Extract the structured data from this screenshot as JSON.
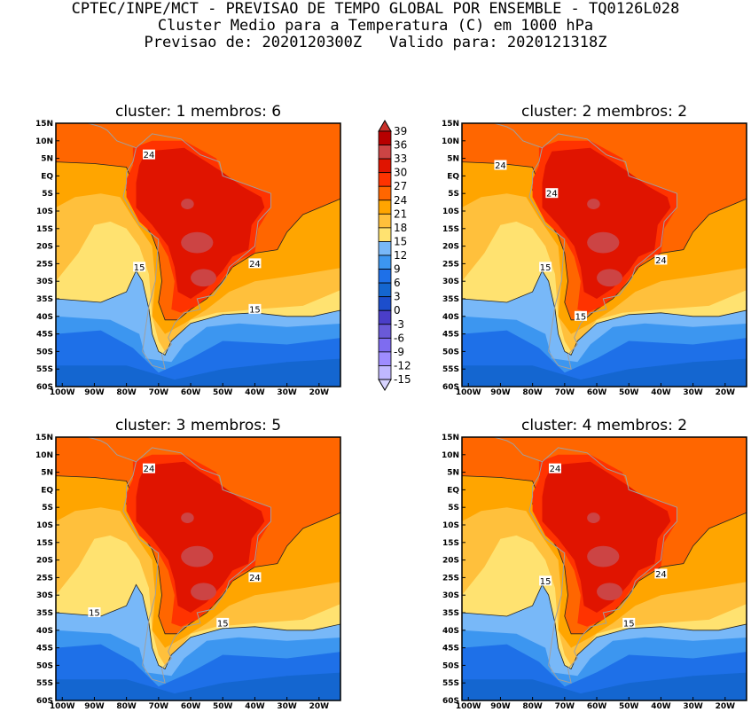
{
  "header": {
    "line1": "CPTEC/INPE/MCT - PREVISAO DE TEMPO GLOBAL POR ENSEMBLE - TQ0126L028",
    "line2": "Cluster Medio para a Temperatura (C) em 1000 hPa",
    "line3": "Previsao de: 2020120300Z   Valido para: 2020121318Z"
  },
  "panels": [
    {
      "title": "cluster: 1  membros: 6",
      "contour_labels": [
        "24",
        "24",
        "15",
        "15"
      ]
    },
    {
      "title": "cluster: 2  membros: 2",
      "contour_labels": [
        "24",
        "24",
        "24",
        "15",
        "15"
      ]
    },
    {
      "title": "cluster: 3  membros: 5",
      "contour_labels": [
        "24",
        "24",
        "15",
        "15"
      ]
    },
    {
      "title": "cluster: 4  membros: 2",
      "contour_labels": [
        "24",
        "24",
        "15",
        "15"
      ]
    }
  ],
  "axes": {
    "lat_labels": [
      "15N",
      "10N",
      "5N",
      "EQ",
      "5S",
      "10S",
      "15S",
      "20S",
      "25S",
      "30S",
      "35S",
      "40S",
      "45S",
      "50S",
      "55S",
      "60S"
    ],
    "lon_labels": [
      "100W",
      "90W",
      "80W",
      "70W",
      "60W",
      "50W",
      "40W",
      "30W",
      "20W"
    ]
  },
  "colorbar": {
    "labels": [
      "39",
      "36",
      "33",
      "30",
      "27",
      "24",
      "21",
      "18",
      "15",
      "12",
      "9",
      "6",
      "3",
      "0",
      "-3",
      "-6",
      "-9",
      "-12",
      "-15"
    ],
    "colors": [
      "#c8302a",
      "#b80000",
      "#cc4444",
      "#e01400",
      "#ff3300",
      "#ff6600",
      "#ffa500",
      "#ffc03c",
      "#ffe270",
      "#78b8f8",
      "#3c96f0",
      "#1e70e8",
      "#1466d0",
      "#1c4ecc",
      "#4a3ec8",
      "#6a5ad8",
      "#7e6cf0",
      "#9e8cff",
      "#c0b8ff",
      "#d8d4ff"
    ]
  }
}
